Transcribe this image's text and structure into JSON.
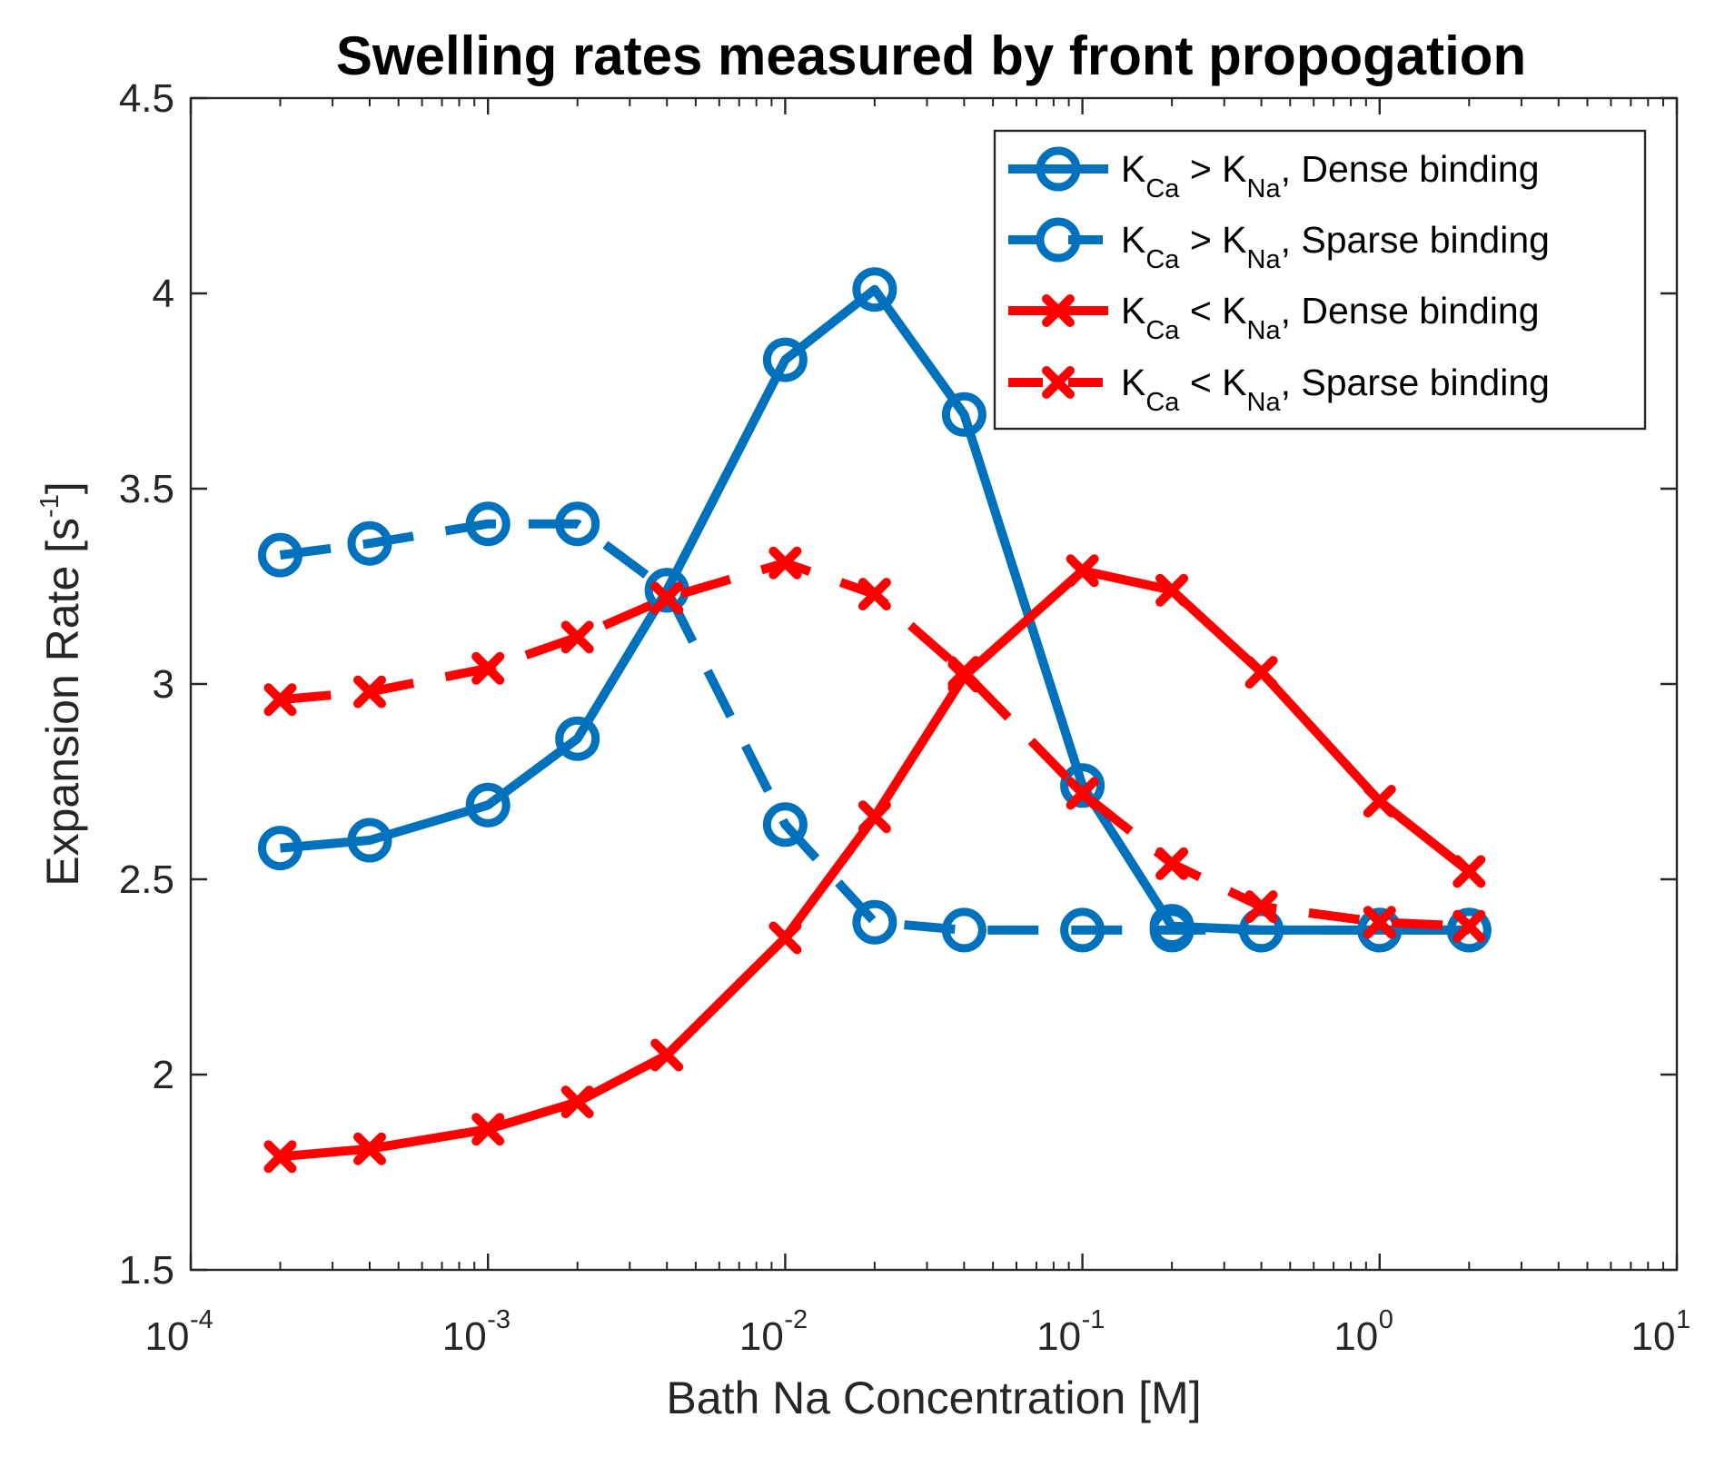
{
  "chart_data": {
    "type": "line",
    "title": "Swelling rates measured by front propogation",
    "xlabel": "Bath Na Concentration [M]",
    "ylabel_text": "Expansion Rate [s",
    "ylabel_sup": "-1",
    "ylabel_close": "]",
    "xscale": "log",
    "xlim": [
      0.0001,
      10
    ],
    "ylim": [
      1.5,
      4.5
    ],
    "grid": false,
    "legend_position": "top-right",
    "x_ticks": [
      {
        "value": 0.0001,
        "base": "10",
        "exp": "-4"
      },
      {
        "value": 0.001,
        "base": "10",
        "exp": "-3"
      },
      {
        "value": 0.01,
        "base": "10",
        "exp": "-2"
      },
      {
        "value": 0.1,
        "base": "10",
        "exp": "-1"
      },
      {
        "value": 1,
        "base": "10",
        "exp": "0"
      },
      {
        "value": 10,
        "base": "10",
        "exp": "1"
      }
    ],
    "y_ticks": [
      {
        "value": 1.5,
        "label": "1.5"
      },
      {
        "value": 2,
        "label": "2"
      },
      {
        "value": 2.5,
        "label": "2.5"
      },
      {
        "value": 3,
        "label": "3"
      },
      {
        "value": 3.5,
        "label": "3.5"
      },
      {
        "value": 4,
        "label": "4"
      },
      {
        "value": 4.5,
        "label": "4.5"
      }
    ],
    "x": [
      0.0002,
      0.0004,
      0.001,
      0.002,
      0.004,
      0.01,
      0.02,
      0.04,
      0.1,
      0.2,
      0.4,
      1,
      2
    ],
    "series": [
      {
        "name": "K_Ca > K_Na, Dense binding",
        "legend": {
          "k1": "K",
          "s1": "Ca",
          "op": " > ",
          "k2": "K",
          "s2": "Na",
          "rest": ", Dense binding"
        },
        "color": "#0072BD",
        "linestyle": "solid",
        "marker": "circle",
        "values": [
          2.58,
          2.6,
          2.69,
          2.86,
          3.24,
          3.83,
          4.01,
          3.69,
          2.74,
          2.38,
          2.37,
          2.37,
          2.37
        ]
      },
      {
        "name": "K_Ca > K_Na, Sparse binding",
        "legend": {
          "k1": "K",
          "s1": "Ca",
          "op": " > ",
          "k2": "K",
          "s2": "Na",
          "rest": ", Sparse binding"
        },
        "color": "#0072BD",
        "linestyle": "dashed",
        "marker": "circle",
        "values": [
          3.33,
          3.36,
          3.41,
          3.41,
          3.24,
          2.64,
          2.39,
          2.37,
          2.37,
          2.37,
          2.37,
          2.37,
          2.37
        ]
      },
      {
        "name": "K_Ca < K_Na, Dense binding",
        "legend": {
          "k1": "K",
          "s1": "Ca",
          "op": " < ",
          "k2": "K",
          "s2": "Na",
          "rest": ", Dense binding"
        },
        "color": "#FF0000",
        "linestyle": "solid",
        "marker": "x",
        "values": [
          1.79,
          1.81,
          1.86,
          1.93,
          2.05,
          2.35,
          2.66,
          3.02,
          3.29,
          3.24,
          3.03,
          2.7,
          2.52
        ]
      },
      {
        "name": "K_Ca < K_Na, Sparse binding",
        "legend": {
          "k1": "K",
          "s1": "Ca",
          "op": " < ",
          "k2": "K",
          "s2": "Na",
          "rest": ", Sparse binding"
        },
        "color": "#FF0000",
        "linestyle": "dashed",
        "marker": "x",
        "values": [
          2.96,
          2.98,
          3.04,
          3.12,
          3.22,
          3.31,
          3.23,
          3.03,
          2.72,
          2.54,
          2.43,
          2.39,
          2.38
        ]
      }
    ]
  }
}
